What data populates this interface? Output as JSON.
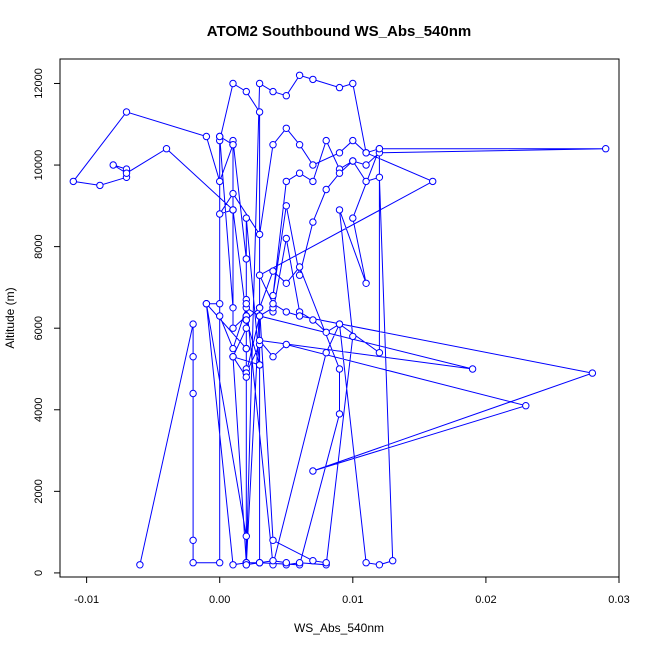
{
  "chart_data": {
    "type": "line",
    "title": "ATOM2 Southbound WS_Abs_540nm",
    "xlabel": "WS_Abs_540nm",
    "ylabel": "Altitude (m)",
    "xlim": [
      -0.012,
      0.03
    ],
    "ylim": [
      -100,
      12600
    ],
    "xticks": [
      -0.01,
      0.0,
      0.01,
      0.02,
      0.03
    ],
    "xtick_labels": [
      "-0.01",
      "0.00",
      "0.01",
      "0.02",
      "0.03"
    ],
    "yticks": [
      0,
      2000,
      4000,
      6000,
      8000,
      10000,
      12000
    ],
    "ytick_labels": [
      "0",
      "2000",
      "4000",
      "6000",
      "8000",
      "10000",
      "12000"
    ],
    "series_color": "#0000ff",
    "grid": false,
    "legend": "none",
    "series": [
      {
        "x": [
          -0.006,
          -0.002,
          -0.002,
          -0.002,
          -0.002,
          -0.002,
          0.0,
          0.0,
          0.001,
          0.001,
          0.002,
          0.002,
          0.002,
          0.003,
          0.003,
          0.002,
          0.002,
          0.003,
          0.003,
          0.002,
          0.001,
          0.0,
          0.0,
          0.001,
          0.001,
          0.002,
          0.002,
          0.001,
          0.001,
          0.0,
          -0.001,
          -0.007,
          -0.011,
          -0.009,
          -0.007,
          -0.007,
          -0.008,
          -0.007,
          -0.004,
          0.001,
          0.0,
          0.001,
          0.003,
          0.004,
          0.005,
          0.006,
          0.007,
          0.009,
          0.01,
          0.011,
          0.012,
          0.029,
          0.012,
          0.011,
          0.01,
          0.009,
          0.008,
          0.007,
          0.006,
          0.005,
          0.004,
          0.005,
          0.006,
          0.007,
          0.008,
          0.009,
          0.01,
          0.011,
          0.012,
          0.013,
          0.012,
          0.011,
          0.009,
          0.008,
          0.007,
          0.006,
          0.005,
          0.004,
          0.004,
          0.003,
          0.002,
          0.002,
          0.003,
          0.004,
          0.005,
          0.006,
          0.007,
          0.009,
          0.01,
          0.011,
          0.016,
          0.003,
          0.004,
          0.005,
          0.006,
          0.028,
          0.007,
          0.023,
          0.005,
          0.004,
          0.003,
          0.019,
          0.003,
          0.002,
          0.001,
          0.0,
          0.0,
          -0.001,
          0.002,
          0.002,
          0.001,
          0.003,
          0.002,
          0.002,
          0.002,
          0.002,
          0.003,
          0.004,
          0.005,
          0.006,
          0.009,
          0.009,
          0.006,
          0.003,
          0.002,
          0.002,
          0.001,
          0.002,
          0.002,
          0.004,
          0.008,
          0.009,
          0.012,
          0.012,
          0.01,
          0.011,
          0.009,
          0.01,
          0.008,
          0.006,
          0.005,
          0.005,
          0.004,
          0.003,
          0.002,
          0.001,
          -0.001,
          0.002,
          0.002,
          0.003,
          0.004,
          0.007,
          0.008
        ],
        "y": [
          200,
          6100,
          5300,
          4400,
          800,
          250,
          250,
          10700,
          10500,
          6000,
          6300,
          5000,
          4900,
          5600,
          5100,
          6200,
          200,
          250,
          11300,
          11800,
          12000,
          10600,
          10700,
          6500,
          8900,
          6300,
          7700,
          10600,
          10500,
          9600,
          10700,
          11300,
          9600,
          9500,
          9700,
          9900,
          10000,
          9800,
          10400,
          8900,
          8800,
          9300,
          8300,
          10500,
          10900,
          10500,
          10000,
          10300,
          10600,
          10300,
          10400,
          10400,
          10300,
          10000,
          10100,
          9900,
          10600,
          9600,
          9800,
          9600,
          6800,
          9000,
          7300,
          8600,
          9400,
          9800,
          10100,
          9600,
          9700,
          300,
          200,
          250,
          6100,
          5900,
          6200,
          6400,
          8200,
          6400,
          6500,
          6300,
          4900,
          250,
          12000,
          11800,
          11700,
          12200,
          12100,
          11900,
          12000,
          10300,
          9600,
          7300,
          6600,
          6400,
          6300,
          4900,
          2500,
          4100,
          5600,
          5300,
          5700,
          5000,
          6300,
          6500,
          5500,
          6300,
          6600,
          6600,
          5500,
          4800,
          5300,
          5100,
          8700,
          5500,
          6700,
          6200,
          6500,
          7400,
          7100,
          7500,
          5000,
          3900,
          200,
          250,
          250,
          250,
          5300,
          6000,
          6600,
          200,
          5400,
          6100,
          5400,
          10400,
          8700,
          7100,
          8900,
          5800,
          200,
          250,
          200,
          250,
          300,
          250,
          250,
          200,
          6600,
          900,
          200,
          6500,
          800,
          300,
          250
        ],
        "point_order_note": ""
      }
    ]
  }
}
